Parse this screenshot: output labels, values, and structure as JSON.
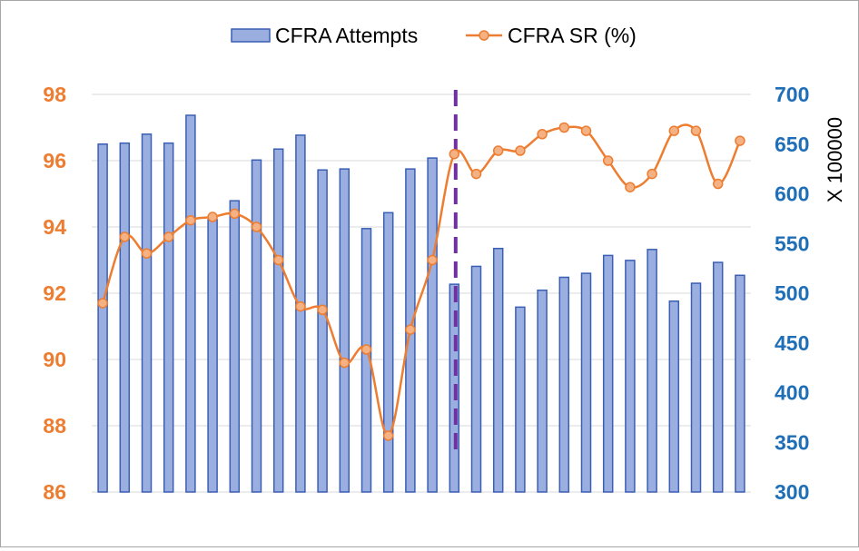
{
  "chart_data": {
    "type": "bar",
    "legend_position": "top",
    "grid": true,
    "colors": {
      "bar_fill": "#9aaee0",
      "bar_stroke": "#3a5fb4",
      "line": "#ed7d31",
      "marker_fill": "#f4b183",
      "left_axis_text": "#ed7d31",
      "right_axis_text": "#1f6fb8",
      "marker_line": "#7030a0",
      "grid": "#d9d9d9"
    },
    "right_axis_label": "X 100000",
    "left_axis": {
      "min": 86,
      "max": 98,
      "ticks": [
        "86",
        "88",
        "90",
        "92",
        "94",
        "96",
        "98"
      ]
    },
    "right_axis": {
      "min": 300,
      "max": 700,
      "ticks": [
        "300",
        "350",
        "400",
        "450",
        "500",
        "550",
        "600",
        "650",
        "700"
      ]
    },
    "series": [
      {
        "name": "CFRA Attempts",
        "type": "bar",
        "axis": "right",
        "values": [
          650,
          651,
          660,
          651,
          679,
          574,
          593,
          634,
          645,
          659,
          624,
          625,
          565,
          581,
          625,
          636,
          509,
          527,
          545,
          486,
          503,
          516,
          520,
          538,
          533,
          544,
          492,
          510,
          531,
          518
        ]
      },
      {
        "name": "CFRA SR (%)",
        "type": "line",
        "axis": "left",
        "values": [
          91.7,
          93.7,
          93.2,
          93.7,
          94.2,
          94.3,
          94.4,
          94.0,
          93.0,
          91.6,
          91.5,
          89.9,
          90.3,
          87.7,
          90.9,
          93.0,
          96.2,
          95.6,
          96.3,
          96.3,
          96.8,
          97.0,
          96.9,
          96.0,
          95.2,
          95.6,
          96.9,
          96.9,
          95.3,
          96.6
        ]
      }
    ],
    "divider_after_index": 16
  }
}
